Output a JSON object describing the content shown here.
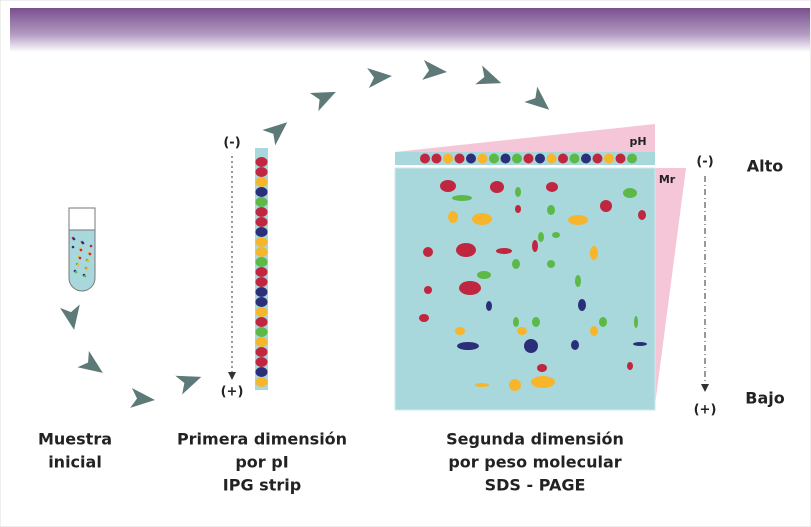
{
  "strip": {
    "top_sign": "(-)",
    "bottom_sign": "(+)"
  },
  "gel": {
    "ph_label": "pH",
    "mr_label": "Mr",
    "top_sign": "(-)",
    "bottom_sign": "(+)",
    "high": "Alto",
    "low": "Bajo"
  },
  "steps": [
    {
      "lines": [
        "Muestra",
        "inicial"
      ]
    },
    {
      "lines": [
        "Primera dimensión",
        "por pI",
        "IPG strip"
      ]
    },
    {
      "lines": [
        "Segunda dimensión",
        "por peso molecular",
        "SDS - PAGE"
      ]
    }
  ]
}
